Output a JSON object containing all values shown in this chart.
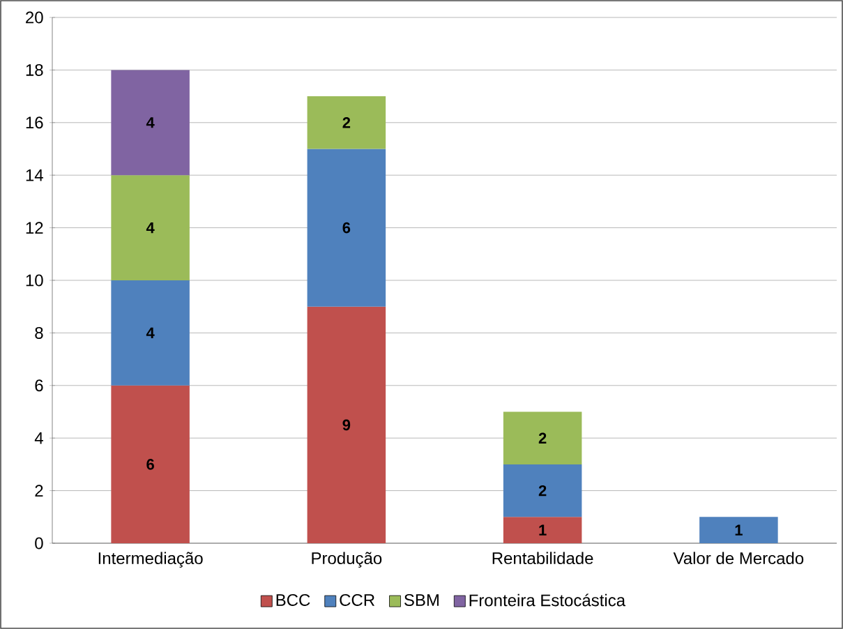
{
  "chart_data": {
    "type": "bar",
    "stacked": true,
    "categories": [
      "Intermediação",
      "Produção",
      "Rentabilidade",
      "Valor de Mercado"
    ],
    "series": [
      {
        "name": "BCC",
        "color": "#c0504d",
        "values": [
          6,
          9,
          1,
          null
        ]
      },
      {
        "name": "CCR",
        "color": "#4f81bd",
        "values": [
          4,
          6,
          2,
          1
        ]
      },
      {
        "name": "SBM",
        "color": "#9bbb59",
        "values": [
          4,
          2,
          2,
          null
        ]
      },
      {
        "name": "Fronteira Estocástica",
        "color": "#8064a2",
        "values": [
          4,
          null,
          null,
          null
        ]
      }
    ],
    "ylim": [
      0,
      20
    ],
    "yticks": [
      0,
      2,
      4,
      6,
      8,
      10,
      12,
      14,
      16,
      18,
      20
    ],
    "grid": "y",
    "legend": "bottom",
    "data_labels": true
  }
}
